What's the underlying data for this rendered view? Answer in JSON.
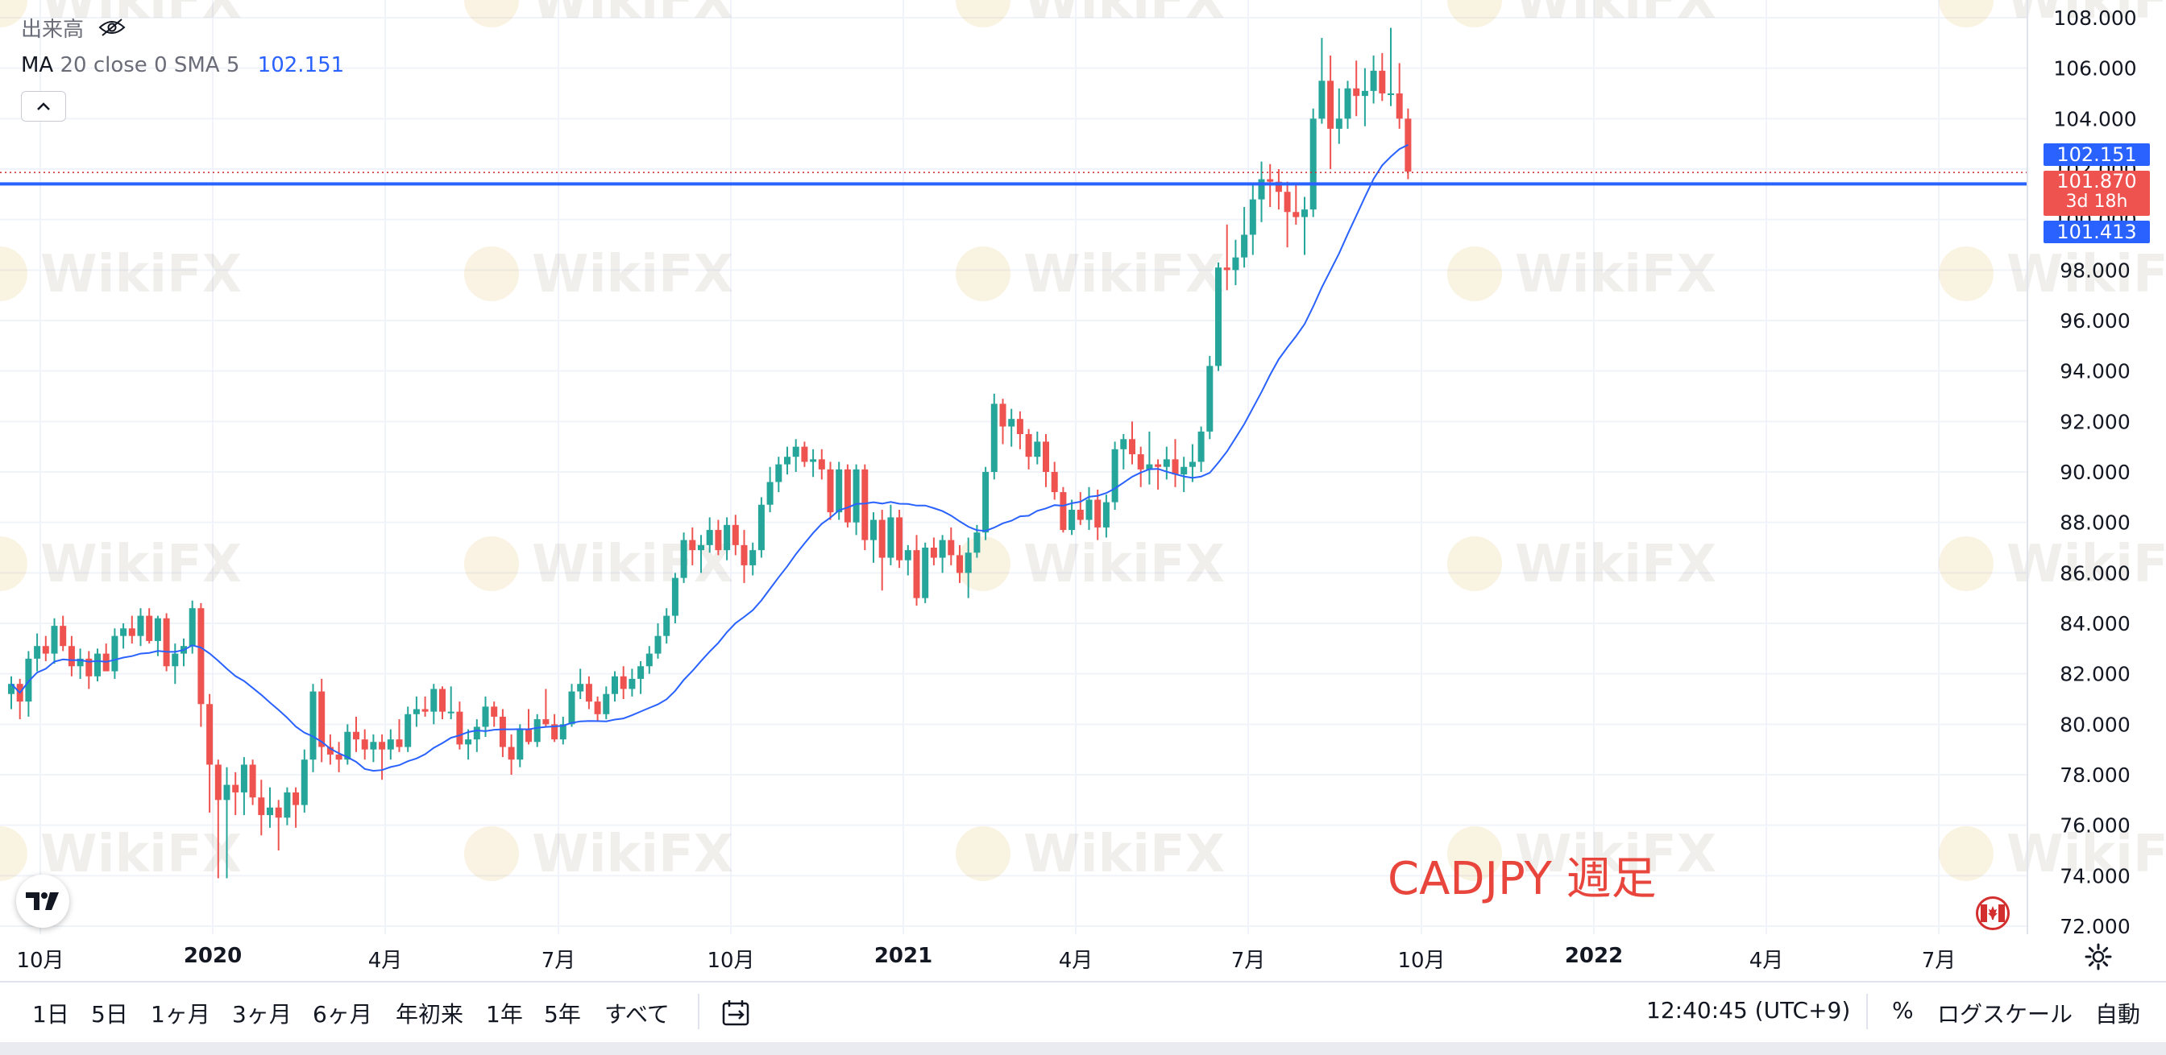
{
  "legend": {
    "volume_label": "出来高",
    "ma_name": "MA",
    "ma_params": "20 close 0 SMA 5",
    "ma_value": "102.151"
  },
  "annotation_text": "CADJPY 週足",
  "price_tags": {
    "ma": "102.151",
    "last": "101.870",
    "countdown": "3d 18h",
    "line": "101.413"
  },
  "time_axis": [
    "10月",
    "2020",
    "4月",
    "7月",
    "10月",
    "2021",
    "4月",
    "7月",
    "10月",
    "2022",
    "4月",
    "7月"
  ],
  "range_buttons": [
    "1日",
    "5日",
    "1ヶ月",
    "3ヶ月",
    "6ヶ月",
    "年初来",
    "1年",
    "5年",
    "すべて"
  ],
  "clock": "12:40:45 (UTC+9)",
  "percent_label": "%",
  "log_label": "ログスケール",
  "auto_label": "自動",
  "watermark": "WikiFX",
  "colors": {
    "up": "#26a69a",
    "down": "#ef5350",
    "ma_line": "#2962ff",
    "hline": "#2962ff",
    "annotation": "#e8453c"
  },
  "icons": [
    "eye-off-icon",
    "chevron-up-icon",
    "tradingview-logo-icon",
    "canada-flag-icon",
    "calendar-range-icon",
    "gear-icon"
  ],
  "chart_data": {
    "type": "candlestick",
    "symbol": "CADJPY",
    "timeframe": "weekly",
    "y_ticks": [
      "108.000",
      "106.000",
      "104.000",
      "102.000",
      "100.000",
      "98.000",
      "96.000",
      "94.000",
      "92.000",
      "90.000",
      "88.000",
      "86.000",
      "84.000",
      "82.000",
      "80.000",
      "78.000",
      "76.000",
      "74.000",
      "72.000"
    ],
    "ylim": [
      72,
      108
    ],
    "xlim": [
      "2019-09-23",
      "2022-09-05"
    ],
    "horizontal_line": 101.413,
    "last_price": 101.87,
    "series": [
      {
        "name": "CADJPY",
        "ohlc": [
          [
            81.2,
            81.9,
            80.6,
            81.6
          ],
          [
            81.6,
            81.8,
            80.2,
            80.9
          ],
          [
            80.9,
            82.9,
            80.3,
            82.6
          ],
          [
            82.6,
            83.6,
            82.1,
            83.1
          ],
          [
            83.1,
            83.5,
            82.5,
            82.8
          ],
          [
            82.8,
            84.2,
            82.4,
            83.9
          ],
          [
            83.9,
            84.3,
            82.9,
            83.1
          ],
          [
            83.1,
            83.5,
            81.9,
            82.3
          ],
          [
            82.3,
            83.0,
            81.8,
            82.6
          ],
          [
            82.6,
            82.9,
            81.4,
            81.9
          ],
          [
            81.9,
            83.0,
            81.7,
            82.8
          ],
          [
            82.8,
            83.2,
            82.1,
            82.1
          ],
          [
            82.1,
            83.8,
            81.8,
            83.5
          ],
          [
            83.5,
            84.0,
            83.0,
            83.8
          ],
          [
            83.8,
            84.3,
            83.2,
            83.5
          ],
          [
            83.5,
            84.6,
            83.1,
            84.3
          ],
          [
            84.3,
            84.6,
            83.2,
            83.3
          ],
          [
            83.3,
            84.3,
            82.7,
            84.2
          ],
          [
            84.2,
            84.4,
            82.1,
            82.3
          ],
          [
            82.3,
            83.2,
            81.6,
            82.8
          ],
          [
            82.8,
            83.4,
            82.3,
            83.1
          ],
          [
            83.1,
            84.9,
            82.8,
            84.6
          ],
          [
            84.6,
            84.8,
            79.9,
            80.8
          ],
          [
            80.8,
            81.2,
            76.5,
            78.4
          ],
          [
            78.4,
            78.6,
            73.9,
            77.0
          ],
          [
            77.0,
            78.3,
            73.9,
            77.6
          ],
          [
            77.6,
            78.1,
            76.4,
            77.3
          ],
          [
            77.3,
            78.7,
            76.4,
            78.4
          ],
          [
            78.4,
            78.6,
            76.8,
            77.1
          ],
          [
            77.1,
            77.8,
            75.6,
            76.4
          ],
          [
            76.4,
            77.5,
            75.9,
            76.7
          ],
          [
            76.7,
            77.0,
            75.0,
            76.3
          ],
          [
            76.3,
            77.5,
            76.0,
            77.3
          ],
          [
            77.3,
            77.5,
            75.9,
            76.8
          ],
          [
            76.8,
            79.0,
            76.5,
            78.6
          ],
          [
            78.6,
            81.6,
            78.1,
            81.3
          ],
          [
            81.3,
            81.8,
            78.5,
            79.1
          ],
          [
            79.1,
            79.6,
            78.4,
            78.8
          ],
          [
            78.8,
            79.3,
            78.1,
            78.6
          ],
          [
            78.6,
            80.0,
            78.4,
            79.7
          ],
          [
            79.7,
            80.3,
            78.9,
            79.4
          ],
          [
            79.4,
            79.8,
            78.6,
            79.0
          ],
          [
            79.0,
            79.6,
            78.5,
            79.3
          ],
          [
            79.3,
            79.6,
            77.8,
            79.0
          ],
          [
            79.0,
            79.8,
            78.6,
            79.4
          ],
          [
            79.4,
            80.2,
            78.9,
            79.1
          ],
          [
            79.1,
            80.7,
            78.9,
            80.4
          ],
          [
            80.4,
            81.1,
            79.9,
            80.6
          ],
          [
            80.6,
            81.1,
            80.3,
            80.5
          ],
          [
            80.5,
            81.6,
            80.0,
            81.4
          ],
          [
            81.4,
            81.5,
            80.2,
            80.5
          ],
          [
            80.5,
            81.5,
            80.2,
            80.5
          ],
          [
            80.5,
            80.9,
            79.0,
            79.2
          ],
          [
            79.2,
            79.8,
            78.6,
            79.4
          ],
          [
            79.4,
            80.2,
            78.9,
            79.9
          ],
          [
            79.9,
            81.1,
            79.5,
            80.7
          ],
          [
            80.7,
            80.9,
            79.9,
            80.3
          ],
          [
            80.3,
            80.6,
            78.7,
            79.1
          ],
          [
            79.1,
            79.6,
            78.0,
            78.6
          ],
          [
            78.6,
            80.0,
            78.3,
            79.8
          ],
          [
            79.8,
            80.6,
            79.2,
            79.3
          ],
          [
            79.3,
            80.4,
            79.1,
            80.2
          ],
          [
            80.2,
            81.4,
            79.9,
            80.0
          ],
          [
            80.0,
            80.4,
            79.3,
            79.4
          ],
          [
            79.4,
            80.3,
            79.2,
            80.0
          ],
          [
            80.0,
            81.6,
            79.9,
            81.3
          ],
          [
            81.3,
            82.2,
            81.0,
            81.6
          ],
          [
            81.6,
            81.9,
            80.6,
            80.9
          ],
          [
            80.9,
            81.1,
            80.1,
            80.4
          ],
          [
            80.4,
            81.5,
            80.2,
            81.2
          ],
          [
            81.2,
            82.1,
            80.9,
            81.9
          ],
          [
            81.9,
            82.3,
            81.0,
            81.4
          ],
          [
            81.4,
            82.2,
            81.1,
            81.8
          ],
          [
            81.8,
            82.5,
            81.2,
            82.3
          ],
          [
            82.3,
            83.1,
            82.0,
            82.8
          ],
          [
            82.8,
            84.0,
            82.6,
            83.5
          ],
          [
            83.5,
            84.6,
            83.2,
            84.3
          ],
          [
            84.3,
            86.0,
            84.0,
            85.8
          ],
          [
            85.8,
            87.6,
            85.6,
            87.3
          ],
          [
            87.3,
            87.8,
            86.3,
            86.9
          ],
          [
            86.9,
            87.5,
            86.0,
            87.1
          ],
          [
            87.1,
            88.2,
            86.8,
            87.7
          ],
          [
            87.7,
            88.1,
            86.7,
            86.9
          ],
          [
            86.9,
            88.2,
            86.5,
            87.9
          ],
          [
            87.9,
            88.3,
            86.7,
            87.1
          ],
          [
            87.1,
            87.7,
            85.6,
            86.3
          ],
          [
            86.3,
            87.2,
            85.9,
            86.9
          ],
          [
            86.9,
            89.0,
            86.6,
            88.7
          ],
          [
            88.7,
            90.2,
            88.4,
            89.6
          ],
          [
            89.6,
            90.6,
            89.2,
            90.3
          ],
          [
            90.3,
            91.0,
            89.9,
            90.6
          ],
          [
            90.6,
            91.3,
            90.0,
            91.0
          ],
          [
            91.0,
            91.2,
            90.2,
            90.4
          ],
          [
            90.4,
            90.9,
            89.8,
            90.5
          ],
          [
            90.5,
            90.9,
            89.7,
            90.1
          ],
          [
            90.1,
            90.4,
            88.1,
            88.4
          ],
          [
            88.4,
            90.4,
            88.1,
            90.1
          ],
          [
            90.1,
            90.3,
            87.8,
            88.0
          ],
          [
            88.0,
            90.3,
            87.5,
            90.1
          ],
          [
            90.1,
            90.3,
            86.9,
            87.3
          ],
          [
            87.3,
            88.4,
            86.4,
            88.1
          ],
          [
            88.1,
            88.5,
            85.3,
            86.6
          ],
          [
            86.6,
            88.7,
            86.3,
            88.2
          ],
          [
            88.2,
            88.5,
            86.2,
            86.5
          ],
          [
            86.5,
            87.1,
            85.9,
            86.9
          ],
          [
            86.9,
            87.5,
            84.7,
            85.0
          ],
          [
            85.0,
            87.2,
            84.8,
            87.0
          ],
          [
            87.0,
            87.4,
            86.3,
            86.6
          ],
          [
            86.6,
            87.5,
            86.0,
            87.3
          ],
          [
            87.3,
            87.8,
            86.3,
            86.7
          ],
          [
            86.7,
            87.1,
            85.6,
            86.0
          ],
          [
            86.0,
            87.4,
            85.0,
            86.8
          ],
          [
            86.8,
            87.9,
            86.6,
            87.6
          ],
          [
            87.6,
            90.2,
            87.3,
            90.0
          ],
          [
            90.0,
            93.1,
            89.7,
            92.7
          ],
          [
            92.7,
            92.9,
            91.1,
            91.8
          ],
          [
            91.8,
            92.5,
            91.0,
            92.1
          ],
          [
            92.1,
            92.4,
            90.9,
            91.5
          ],
          [
            91.5,
            91.7,
            90.1,
            90.6
          ],
          [
            90.6,
            91.6,
            90.3,
            91.2
          ],
          [
            91.2,
            91.5,
            89.4,
            90.0
          ],
          [
            90.0,
            90.4,
            88.9,
            89.2
          ],
          [
            89.2,
            89.4,
            87.6,
            87.7
          ],
          [
            87.7,
            88.9,
            87.5,
            88.5
          ],
          [
            88.5,
            89.2,
            87.9,
            88.1
          ],
          [
            88.1,
            89.4,
            87.7,
            88.9
          ],
          [
            88.9,
            89.3,
            87.3,
            87.8
          ],
          [
            87.8,
            89.1,
            87.4,
            88.8
          ],
          [
            88.8,
            91.2,
            88.5,
            90.9
          ],
          [
            90.9,
            91.5,
            90.1,
            91.3
          ],
          [
            91.3,
            92.0,
            90.3,
            90.7
          ],
          [
            90.7,
            91.0,
            89.4,
            90.1
          ],
          [
            90.1,
            91.6,
            89.5,
            90.3
          ],
          [
            90.3,
            90.5,
            89.3,
            90.2
          ],
          [
            90.2,
            91.0,
            89.7,
            90.5
          ],
          [
            90.5,
            91.3,
            89.4,
            89.9
          ],
          [
            89.9,
            90.6,
            89.2,
            90.2
          ],
          [
            90.2,
            91.1,
            89.6,
            90.4
          ],
          [
            90.4,
            91.8,
            90.0,
            91.6
          ],
          [
            91.6,
            94.6,
            91.3,
            94.2
          ],
          [
            94.2,
            98.3,
            94.0,
            98.1
          ],
          [
            98.1,
            99.8,
            97.2,
            98.0
          ],
          [
            98.0,
            99.2,
            97.4,
            98.5
          ],
          [
            98.5,
            100.5,
            98.1,
            99.4
          ],
          [
            99.4,
            101.4,
            98.6,
            100.8
          ],
          [
            100.8,
            102.3,
            99.9,
            101.6
          ],
          [
            101.6,
            102.2,
            100.5,
            101.5
          ],
          [
            101.5,
            102.0,
            100.4,
            101.1
          ],
          [
            101.1,
            101.5,
            98.9,
            100.3
          ],
          [
            100.3,
            101.4,
            99.8,
            100.1
          ],
          [
            100.1,
            100.9,
            98.6,
            100.4
          ],
          [
            100.4,
            104.4,
            100.1,
            104.0
          ],
          [
            104.0,
            107.2,
            103.8,
            105.5
          ],
          [
            105.5,
            106.5,
            102.0,
            103.6
          ],
          [
            103.6,
            105.2,
            103.0,
            104.0
          ],
          [
            104.0,
            105.5,
            103.6,
            105.2
          ],
          [
            105.2,
            106.3,
            104.1,
            104.9
          ],
          [
            104.9,
            106.0,
            103.7,
            105.1
          ],
          [
            105.1,
            106.5,
            104.6,
            105.9
          ],
          [
            105.9,
            106.6,
            104.7,
            105.0
          ],
          [
            105.0,
            107.6,
            104.5,
            105.0
          ],
          [
            105.0,
            106.2,
            103.6,
            104.0
          ],
          [
            104.0,
            104.4,
            101.6,
            101.9
          ]
        ]
      }
    ]
  }
}
